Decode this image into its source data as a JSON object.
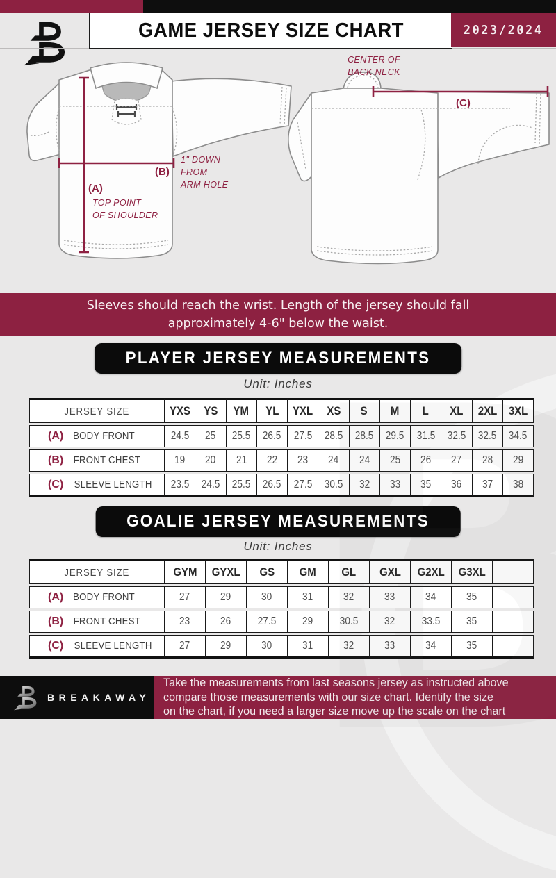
{
  "header": {
    "title": "GAME JERSEY SIZE CHART",
    "season": "2023/2024"
  },
  "diagram": {
    "front": {
      "label_a": "(A)",
      "note_a": [
        "TOP POINT",
        "OF SHOULDER"
      ],
      "label_b": "(B)",
      "note_b": [
        "1\" DOWN",
        "FROM",
        "ARM HOLE"
      ]
    },
    "back": {
      "label_c": "(C)",
      "note_c": [
        "CENTER OF",
        "BACK NECK"
      ]
    }
  },
  "banner": {
    "line1": "Sleeves should reach the wrist. Length of the jersey should fall",
    "line2": "approximately 4-6\" below the waist."
  },
  "player_table": {
    "heading": "PLAYER JERSEY MEASUREMENTS",
    "unit": "Unit: Inches",
    "corner": "JERSEY SIZE",
    "sizes": [
      "YXS",
      "YS",
      "YM",
      "YL",
      "YXL",
      "XS",
      "S",
      "M",
      "L",
      "XL",
      "2XL",
      "3XL"
    ],
    "rows": [
      {
        "letter": "(A)",
        "label": "BODY FRONT",
        "values": [
          "24.5",
          "25",
          "25.5",
          "26.5",
          "27.5",
          "28.5",
          "28.5",
          "29.5",
          "31.5",
          "32.5",
          "32.5",
          "34.5"
        ]
      },
      {
        "letter": "(B)",
        "label": "FRONT CHEST",
        "values": [
          "19",
          "20",
          "21",
          "22",
          "23",
          "24",
          "24",
          "25",
          "26",
          "27",
          "28",
          "29"
        ]
      },
      {
        "letter": "(C)",
        "label": "SLEEVE LENGTH",
        "values": [
          "23.5",
          "24.5",
          "25.5",
          "26.5",
          "27.5",
          "30.5",
          "32",
          "33",
          "35",
          "36",
          "37",
          "38"
        ]
      }
    ]
  },
  "goalie_table": {
    "heading": "GOALIE JERSEY MEASUREMENTS",
    "unit": "Unit: Inches",
    "corner": "JERSEY SIZE",
    "sizes": [
      "GYM",
      "GYXL",
      "GS",
      "GM",
      "GL",
      "GXL",
      "G2XL",
      "G3XL",
      ""
    ],
    "rows": [
      {
        "letter": "(A)",
        "label": "BODY FRONT",
        "values": [
          "27",
          "29",
          "30",
          "31",
          "32",
          "33",
          "34",
          "35",
          ""
        ]
      },
      {
        "letter": "(B)",
        "label": "FRONT CHEST",
        "values": [
          "23",
          "26",
          "27.5",
          "29",
          "30.5",
          "32",
          "33.5",
          "35",
          ""
        ]
      },
      {
        "letter": "(C)",
        "label": "SLEEVE LENGTH",
        "values": [
          "27",
          "29",
          "30",
          "31",
          "32",
          "33",
          "34",
          "35",
          ""
        ]
      }
    ]
  },
  "footer": {
    "brand": "BREAKAWAY",
    "note_lines": [
      "Take the measurements from last seasons jersey as instructed above",
      "compare those measurements  with our size chart. Identify the size",
      "on the chart, if you need a larger size move up the scale on the chart"
    ]
  },
  "watermark": {
    "glyph": "B"
  },
  "colors": {
    "maroon": "#8d2141",
    "black": "#0e0e0e",
    "page_bg": "#e9e8e8"
  }
}
